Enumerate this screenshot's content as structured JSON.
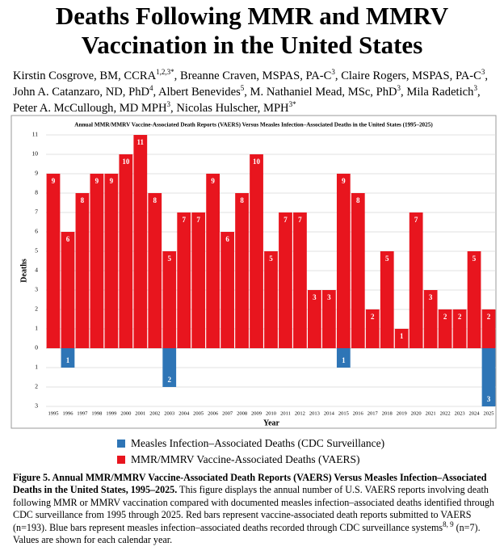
{
  "header": {
    "title": "Deaths Following MMR and MMRV Vaccination in the United States",
    "authors": [
      {
        "text": "Kirstin Cosgrove, BM, CCRA",
        "sup": "1,2,3*"
      },
      {
        "text": ", Breanne Craven, MSPAS, PA-C",
        "sup": "3"
      },
      {
        "text": ", Claire Rogers, MSPAS, PA-C",
        "sup": "3"
      },
      {
        "text": ", John A. Catanzaro, ND, PhD",
        "sup": "4"
      },
      {
        "text": ", Albert Benevides",
        "sup": "5"
      },
      {
        "text": ", M. Nathaniel Mead, MSc, PhD",
        "sup": "3"
      },
      {
        "text": ", Mila Radetich",
        "sup": "3"
      },
      {
        "text": ", Peter A. McCullough, MD MPH",
        "sup": "3"
      },
      {
        "text": ", Nicolas Hulscher, MPH",
        "sup": "3*"
      }
    ]
  },
  "chart_data": {
    "type": "bar",
    "title": "Annual MMR/MMRV Vaccine-Associated Death Reports (VAERS) Versus Measles Infection–Associated Deaths in the United States (1995–2025)",
    "x_label": "Year",
    "y_label": "Deaths",
    "categories": [
      "1995",
      "1996",
      "1997",
      "1998",
      "1999",
      "2000",
      "2001",
      "2002",
      "2003",
      "2004",
      "2005",
      "2006",
      "2007",
      "2008",
      "2009",
      "2010",
      "2011",
      "2012",
      "2013",
      "2014",
      "2015",
      "2016",
      "2017",
      "2018",
      "2019",
      "2020",
      "2021",
      "2022",
      "2023",
      "2024",
      "2025"
    ],
    "series": [
      {
        "name": "Measles Infection–Associated Deaths (CDC Surveillance)",
        "color": "#2e75b6",
        "direction": "down",
        "values": [
          0,
          1,
          0,
          0,
          0,
          0,
          0,
          0,
          2,
          0,
          0,
          0,
          0,
          0,
          0,
          0,
          0,
          0,
          0,
          0,
          1,
          0,
          0,
          0,
          0,
          0,
          0,
          0,
          0,
          0,
          3
        ]
      },
      {
        "name": "MMR/MMRV Vaccine-Associated Deaths (VAERS)",
        "color": "#e8151e",
        "direction": "up",
        "values": [
          9,
          6,
          8,
          9,
          9,
          10,
          11,
          8,
          5,
          7,
          7,
          9,
          6,
          8,
          10,
          5,
          7,
          7,
          3,
          3,
          9,
          8,
          2,
          5,
          1,
          7,
          3,
          2,
          2,
          5,
          2
        ]
      }
    ],
    "ylim": [
      -3,
      11
    ],
    "yticks": [
      {
        "value": -3,
        "label": "3"
      },
      {
        "value": -2,
        "label": "2"
      },
      {
        "value": -1,
        "label": "1"
      },
      0,
      1,
      2,
      3,
      4,
      5,
      6,
      7,
      8,
      9,
      10,
      11
    ],
    "grid": true,
    "legend": "bottom"
  },
  "caption": {
    "label": "Figure 5. Annual MMR/MMRV Vaccine-Associated Death Reports (VAERS) Versus Measles Infection–Associated Deaths in the United States, 1995–2025.",
    "body": [
      {
        "text": " This figure displays the annual number of U.S. VAERS reports involving death following MMR or MMRV vaccination compared with documented measles infection–associated deaths identified through CDC surveillance from 1995 through 2025. Red bars represent vaccine-associated death reports submitted to VAERS (n=193). Blue bars represent measles infection–associated deaths recorded through CDC surveillance systems",
        "sup": "8, 9"
      },
      {
        "text": " (n=7). Values are shown for each calendar year."
      }
    ]
  }
}
